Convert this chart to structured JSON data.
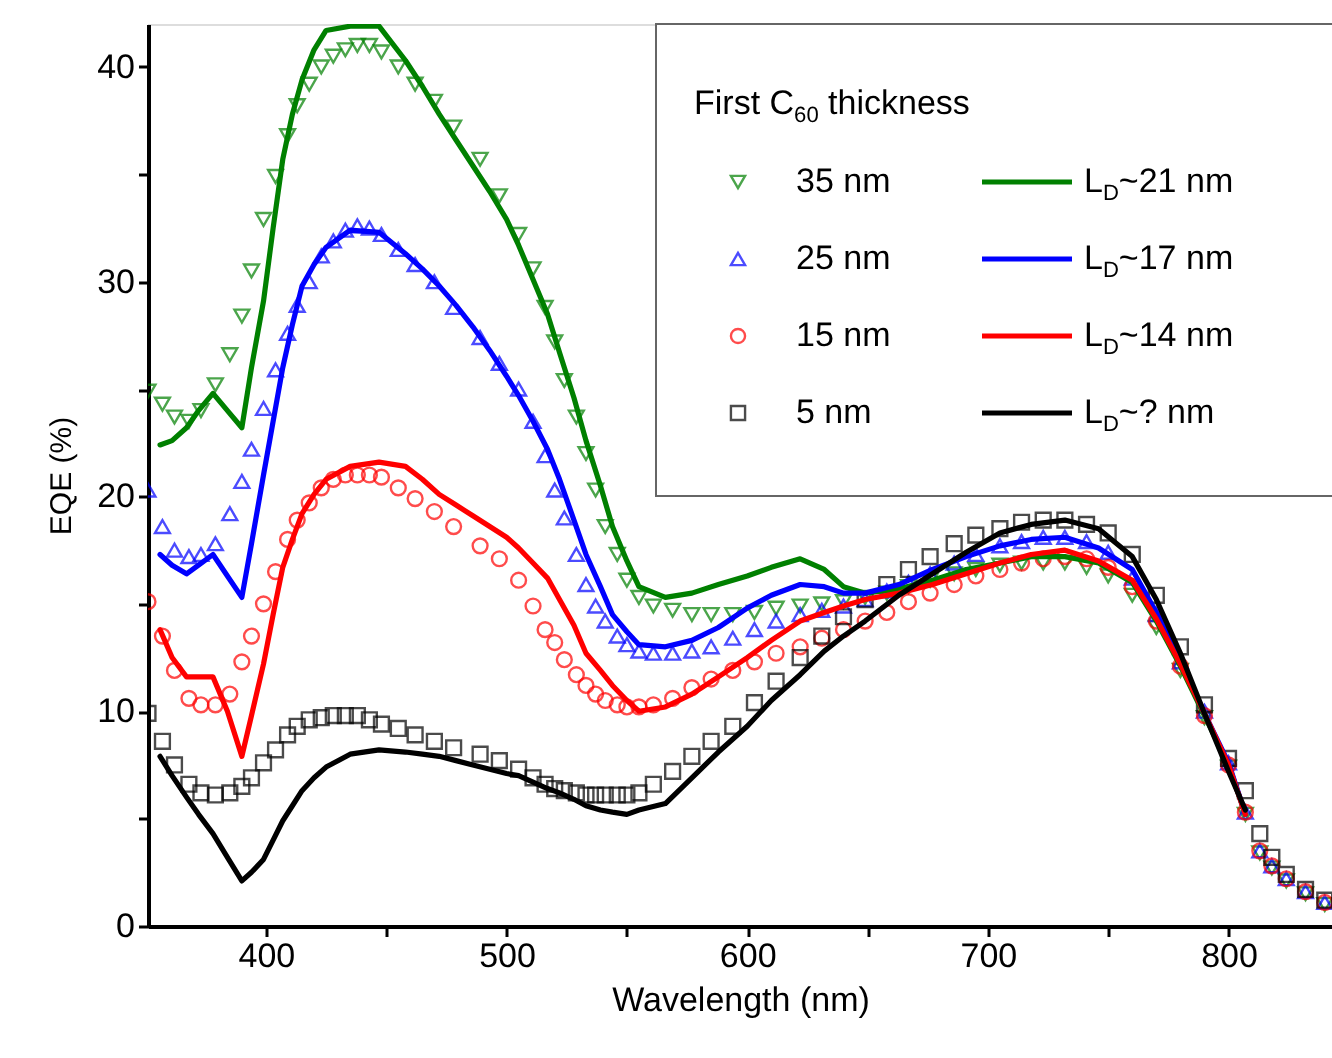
{
  "chart_data": {
    "type": "scatter",
    "xlabel": "Wavelength (nm)",
    "ylabel": "EQE (%)",
    "legend_title": "First C$_{60}$ thickness",
    "legend": "top right",
    "grid": false,
    "xlim": [
      351,
      843
    ],
    "ylim": [
      0,
      42
    ],
    "xticks": [
      400,
      {
        "value": 450,
        "label": null
      },
      500,
      {
        "value": 550,
        "label": null
      },
      600,
      {
        "value": 650,
        "label": null
      },
      700,
      {
        "value": 750,
        "label": null
      },
      800
    ],
    "yticks": [
      0,
      {
        "value": 5,
        "label": null
      },
      10,
      {
        "value": 15,
        "label": null
      },
      20,
      {
        "value": 25,
        "label": null
      },
      30,
      {
        "value": 35,
        "label": null
      },
      40
    ],
    "x": [
      351,
      357,
      362,
      368,
      373,
      379,
      385,
      390,
      394,
      399,
      404,
      409,
      413,
      418,
      423,
      428,
      433,
      438,
      443,
      448,
      455,
      462,
      470,
      478,
      489,
      497,
      505,
      511,
      516,
      520,
      524,
      529,
      533,
      537,
      541,
      546,
      550,
      555,
      561,
      569,
      577,
      585,
      594,
      603,
      612,
      622,
      631,
      640,
      649,
      658,
      667,
      676,
      686,
      695,
      705,
      714,
      723,
      732,
      741,
      750,
      760,
      770,
      780,
      790,
      800,
      807,
      813,
      818,
      824,
      832,
      840
    ],
    "series": [
      {
        "name": "35 nm",
        "marker": "triangle-down",
        "color": "#008000",
        "values": [
          24.9,
          24.3,
          23.7,
          23.5,
          24.0,
          25.2,
          26.6,
          28.4,
          30.5,
          32.9,
          34.9,
          36.8,
          38.2,
          39.2,
          40.0,
          40.5,
          40.8,
          41.0,
          41.0,
          40.7,
          40.0,
          39.2,
          38.4,
          37.2,
          35.7,
          34.0,
          32.2,
          30.6,
          28.8,
          27.2,
          25.4,
          23.7,
          22.0,
          20.3,
          18.6,
          17.3,
          16.1,
          15.3,
          14.9,
          14.7,
          14.5,
          14.5,
          14.5,
          14.6,
          14.8,
          14.9,
          15.0,
          15.1,
          15.3,
          15.5,
          15.8,
          16.1,
          16.4,
          16.6,
          16.8,
          16.9,
          16.9,
          16.9,
          16.7,
          16.3,
          15.4,
          13.9,
          11.9,
          9.7,
          7.4,
          5.2,
          3.4,
          2.7,
          2.1,
          1.5,
          1.0
        ]
      },
      {
        "name": "25 nm",
        "marker": "triangle",
        "color": "#0000ff",
        "values": [
          20.3,
          18.6,
          17.5,
          17.2,
          17.3,
          17.8,
          19.2,
          20.7,
          22.2,
          24.1,
          25.9,
          27.6,
          28.9,
          30.0,
          31.2,
          31.9,
          32.4,
          32.6,
          32.5,
          32.2,
          31.5,
          30.8,
          30.0,
          28.8,
          27.4,
          26.2,
          25.0,
          23.5,
          21.9,
          20.3,
          19.0,
          17.3,
          15.9,
          14.9,
          14.2,
          13.5,
          13.1,
          12.8,
          12.7,
          12.7,
          12.8,
          13.0,
          13.4,
          13.8,
          14.2,
          14.5,
          14.7,
          14.9,
          15.2,
          15.6,
          16.0,
          16.4,
          16.9,
          17.3,
          17.7,
          17.9,
          18.1,
          18.1,
          17.9,
          17.4,
          16.2,
          14.5,
          12.3,
          10.0,
          7.6,
          5.3,
          3.5,
          2.8,
          2.2,
          1.6,
          1.1
        ]
      },
      {
        "name": "15 nm",
        "marker": "circle",
        "color": "#ff0000",
        "values": [
          15.1,
          13.5,
          11.9,
          10.6,
          10.3,
          10.3,
          10.8,
          12.3,
          13.5,
          15.0,
          16.5,
          18.0,
          18.9,
          19.7,
          20.4,
          20.8,
          21.0,
          21.0,
          21.0,
          20.9,
          20.4,
          19.9,
          19.3,
          18.6,
          17.7,
          17.1,
          16.1,
          14.9,
          13.8,
          13.2,
          12.4,
          11.7,
          11.2,
          10.8,
          10.5,
          10.3,
          10.2,
          10.2,
          10.3,
          10.6,
          11.1,
          11.5,
          11.9,
          12.3,
          12.7,
          13.0,
          13.4,
          13.8,
          14.2,
          14.6,
          15.1,
          15.5,
          15.9,
          16.3,
          16.6,
          16.9,
          17.1,
          17.2,
          17.1,
          16.7,
          15.8,
          14.2,
          12.1,
          9.8,
          7.5,
          5.3,
          3.5,
          2.8,
          2.2,
          1.6,
          1.1
        ]
      },
      {
        "name": "5 nm",
        "marker": "square",
        "color": "#000000",
        "values": [
          9.9,
          8.6,
          7.5,
          6.6,
          6.2,
          6.1,
          6.2,
          6.5,
          6.9,
          7.6,
          8.2,
          8.9,
          9.3,
          9.6,
          9.7,
          9.8,
          9.8,
          9.8,
          9.6,
          9.4,
          9.2,
          8.9,
          8.6,
          8.3,
          8.0,
          7.7,
          7.3,
          6.9,
          6.6,
          6.4,
          6.3,
          6.2,
          6.1,
          6.1,
          6.1,
          6.1,
          6.1,
          6.2,
          6.6,
          7.2,
          7.9,
          8.6,
          9.3,
          10.4,
          11.4,
          12.5,
          13.5,
          14.4,
          15.2,
          15.9,
          16.6,
          17.2,
          17.8,
          18.2,
          18.5,
          18.8,
          18.9,
          18.9,
          18.7,
          18.3,
          17.3,
          15.4,
          13.0,
          10.3,
          7.8,
          6.3,
          4.3,
          3.2,
          2.4,
          1.7,
          1.2
        ]
      },
      {
        "name": "L$_{D}$~21 nm",
        "type": "line",
        "color": "#008000",
        "x": [
          356,
          361,
          367,
          372,
          378,
          384,
          390,
          394,
          399,
          403,
          407,
          411,
          415,
          420,
          425,
          435,
          447,
          458,
          465,
          472,
          479,
          486,
          493,
          500,
          505,
          511,
          517,
          522,
          528,
          533,
          539,
          544,
          550,
          555,
          566,
          577,
          588,
          600,
          610,
          622,
          632,
          640,
          649,
          663,
          677,
          691,
          705,
          718,
          732,
          746,
          760,
          770,
          780,
          790,
          800,
          807
        ],
        "values": [
          22.4,
          22.6,
          23.2,
          24.0,
          24.8,
          24.0,
          23.2,
          26.0,
          29.1,
          32.5,
          35.7,
          37.8,
          39.4,
          40.8,
          41.7,
          41.9,
          41.9,
          40.3,
          39.1,
          37.8,
          36.6,
          35.4,
          34.2,
          32.9,
          31.7,
          30.1,
          28.5,
          26.7,
          24.6,
          22.6,
          20.5,
          18.6,
          17.0,
          15.8,
          15.3,
          15.5,
          15.9,
          16.3,
          16.7,
          17.1,
          16.6,
          15.8,
          15.5,
          15.7,
          16.1,
          16.6,
          16.9,
          17.2,
          17.2,
          16.9,
          16.0,
          14.2,
          12.1,
          9.8,
          7.5,
          5.2
        ]
      },
      {
        "name": "L$_{D}$~17 nm",
        "type": "line",
        "color": "#0000ff",
        "x": [
          356,
          361,
          367,
          372,
          378,
          384,
          390,
          394,
          399,
          403,
          407,
          411,
          415,
          420,
          425,
          435,
          447,
          458,
          465,
          472,
          479,
          486,
          493,
          500,
          505,
          511,
          517,
          522,
          528,
          533,
          539,
          544,
          550,
          555,
          566,
          577,
          588,
          600,
          610,
          622,
          632,
          640,
          649,
          663,
          677,
          691,
          705,
          718,
          732,
          746,
          760,
          770,
          780,
          790,
          800,
          807
        ],
        "values": [
          17.3,
          16.8,
          16.4,
          16.8,
          17.3,
          16.3,
          15.3,
          17.8,
          21.0,
          23.5,
          26.0,
          28.0,
          29.8,
          30.8,
          31.6,
          32.4,
          32.3,
          31.3,
          30.6,
          29.8,
          28.9,
          27.9,
          26.8,
          25.6,
          24.7,
          23.5,
          22.2,
          20.8,
          18.9,
          17.3,
          15.8,
          14.5,
          13.7,
          13.1,
          13.0,
          13.3,
          13.9,
          14.8,
          15.4,
          15.9,
          15.8,
          15.5,
          15.5,
          15.9,
          16.6,
          17.2,
          17.7,
          18.0,
          18.1,
          17.6,
          16.6,
          14.6,
          12.3,
          9.9,
          7.6,
          5.2
        ]
      },
      {
        "name": "L$_{D}$~14 nm",
        "type": "line",
        "color": "#ff0000",
        "x": [
          356,
          361,
          367,
          372,
          378,
          384,
          390,
          394,
          399,
          403,
          407,
          411,
          415,
          420,
          425,
          435,
          447,
          458,
          465,
          472,
          479,
          486,
          493,
          500,
          505,
          511,
          517,
          522,
          528,
          533,
          539,
          544,
          550,
          555,
          566,
          577,
          588,
          600,
          610,
          622,
          632,
          640,
          649,
          663,
          677,
          691,
          705,
          718,
          732,
          746,
          760,
          770,
          780,
          790,
          800,
          807
        ],
        "values": [
          13.8,
          12.5,
          11.6,
          11.6,
          11.6,
          10.0,
          7.9,
          9.8,
          12.2,
          14.5,
          16.7,
          18.0,
          19.2,
          20.1,
          20.8,
          21.4,
          21.6,
          21.4,
          20.8,
          20.1,
          19.6,
          19.1,
          18.6,
          18.1,
          17.6,
          16.9,
          16.2,
          15.2,
          14.0,
          12.7,
          11.9,
          11.2,
          10.5,
          10.0,
          10.2,
          10.8,
          11.6,
          12.5,
          13.3,
          14.2,
          14.6,
          14.9,
          15.2,
          15.5,
          15.9,
          16.4,
          16.9,
          17.3,
          17.5,
          17.0,
          16.1,
          14.3,
          12.2,
          9.9,
          7.5,
          5.2
        ]
      },
      {
        "name": "L$_{D}$~? nm",
        "type": "line",
        "color": "#000000",
        "x": [
          356,
          361,
          367,
          372,
          378,
          384,
          390,
          394,
          399,
          403,
          407,
          411,
          415,
          420,
          425,
          435,
          447,
          458,
          465,
          472,
          479,
          486,
          493,
          500,
          505,
          511,
          517,
          522,
          528,
          533,
          539,
          544,
          550,
          555,
          566,
          577,
          588,
          600,
          610,
          622,
          632,
          640,
          649,
          663,
          677,
          691,
          705,
          718,
          732,
          746,
          760,
          770,
          780,
          790,
          800,
          807
        ],
        "values": [
          7.9,
          7.0,
          6.0,
          5.2,
          4.3,
          3.2,
          2.1,
          2.5,
          3.1,
          4.0,
          4.9,
          5.6,
          6.3,
          6.9,
          7.4,
          8.0,
          8.2,
          8.1,
          8.0,
          7.9,
          7.7,
          7.5,
          7.3,
          7.1,
          7.0,
          6.7,
          6.4,
          6.2,
          5.9,
          5.6,
          5.4,
          5.3,
          5.2,
          5.4,
          5.7,
          6.9,
          8.1,
          9.3,
          10.5,
          11.7,
          12.8,
          13.5,
          14.2,
          15.4,
          16.4,
          17.4,
          18.3,
          18.7,
          18.9,
          18.5,
          17.2,
          15.2,
          12.7,
          9.9,
          7.2,
          5.4
        ]
      }
    ]
  }
}
